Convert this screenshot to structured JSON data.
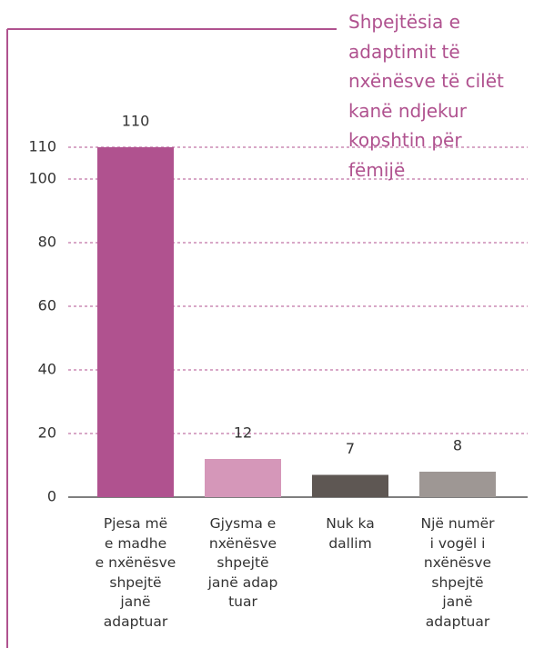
{
  "chart_data": {
    "type": "bar",
    "title": "Shpejtësia e\nadaptimit të\nnxënësve të cilët\nkanë ndjekur\nkopshtin për\nfëmijë",
    "categories": [
      "Pjesa më\ne madhe\ne nxënësve\nshpejtë\njanë\nadaptuar",
      "Gjysma e\nnxënësve\nshpejtë\njanë adap\ntuar",
      "Nuk ka\ndallim",
      "Një numër\ni vogël i\nnxënësve\nshpejtë\njanë\nadaptuar"
    ],
    "values": [
      110,
      12,
      7,
      8
    ],
    "colors": [
      "#b0528f",
      "#d597b9",
      "#5e5753",
      "#9e9794"
    ],
    "ylim": [
      0,
      120
    ],
    "yticks": [
      0,
      20,
      40,
      60,
      80,
      100,
      110
    ],
    "grid": true
  }
}
